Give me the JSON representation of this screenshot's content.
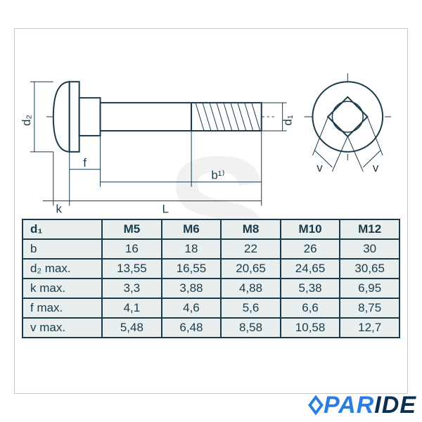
{
  "colors": {
    "line": "#1b3a4a",
    "tableBg": "#e8efee",
    "frameBorder": "#c8c8c8",
    "watermark": "rgba(200,200,200,0.25)",
    "logoDark": "#0d2f52",
    "logoAccent": "#2a7de1",
    "background": "#ffffff"
  },
  "diagram": {
    "labels": {
      "d2": "d₂",
      "d1": "d₁",
      "f": "f",
      "k": "k",
      "L": "L",
      "b1": "b¹⁾",
      "v_left": "v",
      "v_right": "v"
    },
    "strokeWidth": 2,
    "thinStrokeWidth": 1,
    "arrowSize": 6
  },
  "table": {
    "headerKey": "d₁",
    "columns": [
      "M5",
      "M6",
      "M8",
      "M10",
      "M12"
    ],
    "rows": [
      {
        "label": "b",
        "values": [
          "16",
          "18",
          "22",
          "26",
          "30"
        ]
      },
      {
        "label": "d₂ max.",
        "values": [
          "13,55",
          "16,55",
          "20,65",
          "24,65",
          "30,65"
        ]
      },
      {
        "label": "k max.",
        "values": [
          "3,3",
          "3,88",
          "4,88",
          "5,38",
          "6,95"
        ]
      },
      {
        "label": "f max.",
        "values": [
          "4,1",
          "4,6",
          "5,6",
          "6,6",
          "8,75"
        ]
      },
      {
        "label": "v max.",
        "values": [
          "5,48",
          "6,48",
          "8,58",
          "10,58",
          "12,7"
        ]
      }
    ],
    "fontSize": 17,
    "headerFontWeight": 700
  },
  "logo": {
    "text": "PARIDE"
  },
  "watermark": {
    "text": "S"
  }
}
